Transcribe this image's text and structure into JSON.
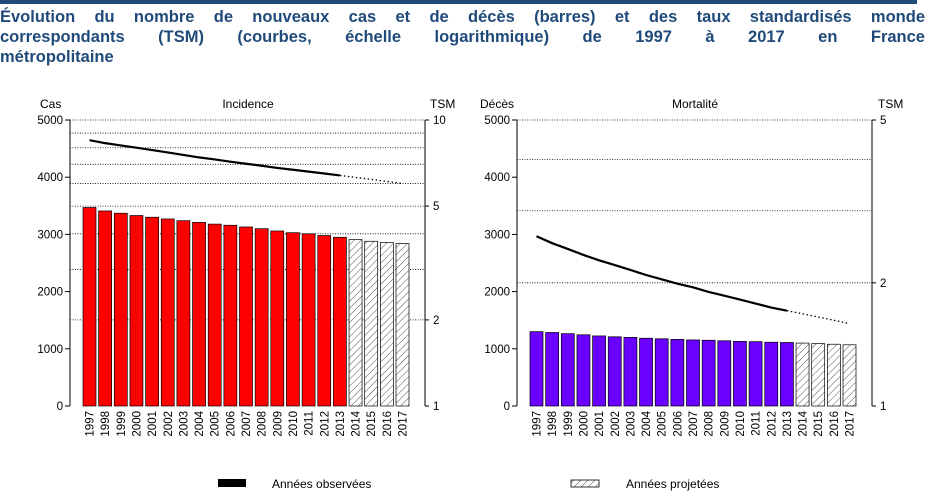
{
  "title_lines": [
    "Évolution du nombre de nouveaux cas et de décès (barres) et des taux standardisés monde",
    "correspondants (TSM) (courbes, échelle logarithmique) de 1997 à 2017 en France",
    "métropolitaine"
  ],
  "colors": {
    "title": "#1f4a7a",
    "top_rule": "#1f4a7a",
    "incidence_bar": "#ff0000",
    "mortality_bar": "#6a00ff",
    "curve": "#000000"
  },
  "legend": {
    "observed": "Années observées",
    "projected": "Années projetées"
  },
  "chart_data": [
    {
      "type": "bar",
      "title": "Incidence",
      "ylabel": "Cas",
      "y2label": "TSM",
      "ylim": [
        0,
        5000
      ],
      "y_ticks": [
        "0",
        "1000",
        "2000",
        "3000",
        "4000",
        "5000"
      ],
      "y2_scale": "log",
      "y2lim": [
        1,
        10
      ],
      "y2_ticks": [
        "1",
        "2",
        "5",
        "10"
      ],
      "grid": "y2 log gridlines (dotted)",
      "categories": [
        "1997",
        "1998",
        "1999",
        "2000",
        "2001",
        "2002",
        "2003",
        "2004",
        "2005",
        "2006",
        "2007",
        "2008",
        "2009",
        "2010",
        "2011",
        "2012",
        "2013",
        "2014",
        "2015",
        "2016",
        "2017"
      ],
      "observed_until": "2013",
      "values": [
        3470,
        3410,
        3370,
        3330,
        3300,
        3270,
        3240,
        3210,
        3180,
        3160,
        3130,
        3100,
        3060,
        3030,
        3010,
        2980,
        2950,
        2910,
        2880,
        2860,
        2840
      ],
      "tsm": [
        8.5,
        8.3,
        8.15,
        8.0,
        7.85,
        7.7,
        7.55,
        7.4,
        7.28,
        7.15,
        7.03,
        6.92,
        6.8,
        6.7,
        6.6,
        6.5,
        6.4,
        6.3,
        6.2,
        6.1,
        6.0
      ]
    },
    {
      "type": "bar",
      "title": "Mortalité",
      "ylabel": "Décès",
      "y2label": "TSM",
      "ylim": [
        0,
        5000
      ],
      "y_ticks": [
        "0",
        "1000",
        "2000",
        "3000",
        "4000",
        "5000"
      ],
      "y2_scale": "log",
      "y2lim": [
        1,
        5
      ],
      "y2_ticks": [
        "1",
        "2",
        "5"
      ],
      "grid": "y2 log gridlines (dotted)",
      "categories": [
        "1997",
        "1998",
        "1999",
        "2000",
        "2001",
        "2002",
        "2003",
        "2004",
        "2005",
        "2006",
        "2007",
        "2008",
        "2009",
        "2010",
        "2011",
        "2012",
        "2013",
        "2014",
        "2015",
        "2016",
        "2017"
      ],
      "observed_until": "2013",
      "values": [
        1300,
        1285,
        1265,
        1245,
        1225,
        1210,
        1200,
        1185,
        1175,
        1165,
        1155,
        1150,
        1140,
        1130,
        1125,
        1115,
        1110,
        1100,
        1090,
        1080,
        1070
      ],
      "tsm": [
        2.6,
        2.5,
        2.42,
        2.34,
        2.27,
        2.21,
        2.15,
        2.09,
        2.04,
        1.99,
        1.95,
        1.9,
        1.86,
        1.82,
        1.78,
        1.74,
        1.71,
        1.68,
        1.65,
        1.62,
        1.59
      ]
    }
  ]
}
